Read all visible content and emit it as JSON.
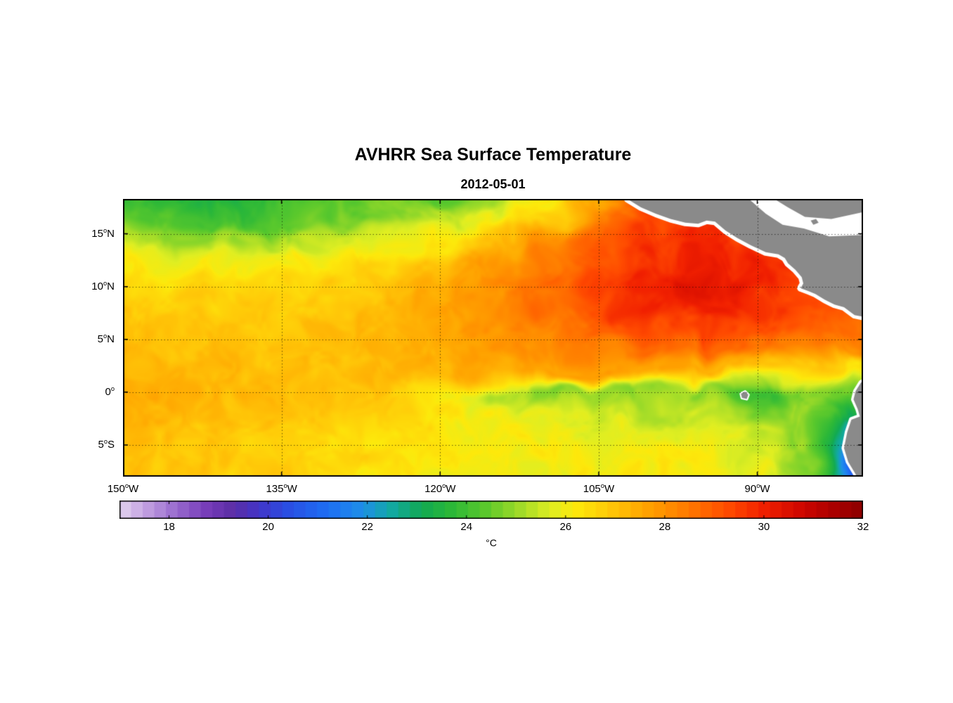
{
  "chart_data": {
    "type": "heatmap",
    "title": "AVHRR Sea Surface Temperature",
    "subtitle": "2012-05-01",
    "colorbar_label": "°C",
    "value_range": [
      17,
      32
    ],
    "colorbar_ticks": [
      18,
      20,
      22,
      24,
      26,
      28,
      30,
      32
    ],
    "lon_range": [
      -150,
      -80
    ],
    "lat_range": [
      -8,
      18.3
    ],
    "x_ticks": [
      {
        "value": -150,
        "text": "150",
        "suffix": "W"
      },
      {
        "value": -135,
        "text": "135",
        "suffix": "W"
      },
      {
        "value": -120,
        "text": "120",
        "suffix": "W"
      },
      {
        "value": -105,
        "text": "105",
        "suffix": "W"
      },
      {
        "value": -90,
        "text": "90",
        "suffix": "W"
      }
    ],
    "y_ticks": [
      {
        "value": 15,
        "text": "15",
        "suffix": "N"
      },
      {
        "value": 10,
        "text": "10",
        "suffix": "N"
      },
      {
        "value": 5,
        "text": "5",
        "suffix": "N"
      },
      {
        "value": 0,
        "text": "0",
        "suffix": ""
      },
      {
        "value": -5,
        "text": "5",
        "suffix": "S"
      }
    ],
    "grid_lines": {
      "lats": [
        15,
        10,
        5,
        0,
        -5
      ],
      "lons": [
        -135,
        -120,
        -105,
        -90
      ]
    },
    "land_color": "#8a8a8a",
    "missing_data_color": "#ffffff",
    "colormap": [
      [
        17.0,
        "#e2d4f0"
      ],
      [
        17.5,
        "#c5a3e2"
      ],
      [
        18.1,
        "#9b6fd0"
      ],
      [
        18.7,
        "#7a3fbc"
      ],
      [
        19.3,
        "#5c2ea6"
      ],
      [
        19.8,
        "#4335c8"
      ],
      [
        20.4,
        "#2a4fe4"
      ],
      [
        21.2,
        "#1e6ef5"
      ],
      [
        21.9,
        "#1f8fe8"
      ],
      [
        22.5,
        "#12a9a2"
      ],
      [
        23.1,
        "#12aa52"
      ],
      [
        23.7,
        "#2cb838"
      ],
      [
        24.4,
        "#5cc92c"
      ],
      [
        25.1,
        "#a3dc28"
      ],
      [
        25.7,
        "#dfee22"
      ],
      [
        26.2,
        "#fde90b"
      ],
      [
        26.9,
        "#ffc808"
      ],
      [
        27.7,
        "#ffa000"
      ],
      [
        28.5,
        "#ff7800"
      ],
      [
        29.3,
        "#ff4a00"
      ],
      [
        30.0,
        "#f12000"
      ],
      [
        30.8,
        "#cd0600"
      ],
      [
        31.4,
        "#ab0000"
      ],
      [
        32.0,
        "#8c0000"
      ]
    ],
    "grid": {
      "lon_start": -150,
      "lon_end": -80,
      "lat_start": 18.3,
      "lat_end": -8,
      "sst": [
        [
          24.0,
          23.6,
          23.5,
          24.0,
          24.3,
          24.6,
          24.4,
          25.2,
          26.2,
          27.6,
          29.0,
          29.3,
          29.3,
          29.2,
          29.0
        ],
        [
          24.6,
          24.2,
          24.0,
          24.2,
          24.5,
          24.9,
          25.1,
          25.8,
          26.8,
          28.2,
          29.4,
          29.6,
          29.4,
          29.2,
          29.0
        ],
        [
          25.4,
          25.0,
          25.0,
          25.2,
          25.6,
          25.9,
          26.3,
          27.0,
          27.9,
          28.9,
          29.6,
          29.9,
          29.6,
          29.4,
          29.2
        ],
        [
          26.3,
          26.0,
          26.0,
          26.1,
          26.4,
          26.7,
          27.1,
          27.7,
          28.4,
          29.2,
          29.8,
          30.1,
          29.9,
          29.5,
          29.3
        ],
        [
          26.7,
          26.5,
          26.5,
          26.6,
          26.8,
          27.0,
          27.4,
          28.0,
          28.7,
          29.5,
          30.1,
          30.3,
          30.0,
          29.2,
          28.8
        ],
        [
          26.9,
          26.8,
          26.7,
          26.8,
          26.9,
          27.2,
          27.6,
          28.1,
          28.7,
          29.3,
          29.9,
          30.0,
          29.7,
          29.3,
          28.9
        ],
        [
          27.1,
          27.0,
          26.9,
          26.9,
          27.1,
          27.3,
          27.6,
          28.0,
          28.4,
          28.8,
          29.3,
          29.5,
          29.3,
          29.1,
          28.7
        ],
        [
          27.2,
          27.1,
          27.0,
          27.0,
          27.1,
          27.3,
          27.5,
          27.8,
          28.1,
          28.3,
          28.6,
          28.8,
          28.7,
          28.5,
          28.1
        ],
        [
          27.3,
          27.2,
          27.1,
          27.0,
          27.1,
          27.2,
          27.3,
          27.5,
          27.6,
          27.7,
          27.6,
          27.4,
          27.1,
          26.9,
          26.3
        ],
        [
          27.4,
          27.3,
          27.2,
          27.1,
          27.0,
          26.8,
          26.3,
          25.3,
          24.9,
          25.1,
          24.9,
          24.8,
          23.8,
          24.9,
          24.5
        ],
        [
          27.3,
          27.2,
          27.1,
          26.9,
          26.8,
          26.6,
          26.3,
          26.0,
          25.8,
          25.6,
          25.2,
          25.4,
          24.6,
          25.0,
          23.0
        ],
        [
          27.1,
          27.0,
          26.9,
          26.8,
          26.6,
          26.4,
          26.2,
          26.1,
          26.0,
          25.9,
          25.8,
          25.7,
          25.5,
          24.8,
          21.5
        ],
        [
          27.0,
          26.9,
          26.9,
          26.8,
          26.6,
          26.5,
          26.3,
          26.2,
          26.1,
          26.1,
          26.1,
          26.0,
          25.7,
          24.9,
          20.0
        ],
        [
          27.0,
          26.9,
          26.8,
          26.7,
          26.4,
          26.2,
          26.1,
          26.0,
          26.0,
          26.1,
          26.2,
          26.1,
          25.8,
          24.6,
          20.5
        ]
      ]
    },
    "land": {
      "central_america": [
        [
          -102.3,
          18.3
        ],
        [
          -101.0,
          17.5
        ],
        [
          -99.6,
          16.9
        ],
        [
          -98.2,
          16.4
        ],
        [
          -96.8,
          16.05
        ],
        [
          -95.6,
          15.95
        ],
        [
          -94.8,
          16.25
        ],
        [
          -94.0,
          16.15
        ],
        [
          -93.0,
          15.3
        ],
        [
          -91.9,
          14.6
        ],
        [
          -90.6,
          13.9
        ],
        [
          -89.2,
          13.25
        ],
        [
          -88.0,
          13.05
        ],
        [
          -87.4,
          12.7
        ],
        [
          -87.1,
          12.2
        ],
        [
          -86.4,
          11.6
        ],
        [
          -85.8,
          10.9
        ],
        [
          -85.65,
          10.3
        ],
        [
          -85.9,
          9.85
        ],
        [
          -85.1,
          9.55
        ],
        [
          -84.5,
          9.3
        ],
        [
          -83.6,
          8.75
        ],
        [
          -82.7,
          8.3
        ],
        [
          -81.8,
          8.05
        ],
        [
          -80.8,
          7.3
        ],
        [
          -79.8,
          7.1
        ],
        [
          -78.0,
          7.8
        ],
        [
          -78.0,
          18.3
        ]
      ],
      "caribbean_mask": [
        [
          -90.8,
          18.3
        ],
        [
          -89.2,
          16.9
        ],
        [
          -87.6,
          15.85
        ],
        [
          -85.6,
          15.5
        ],
        [
          -83.2,
          14.75
        ],
        [
          -79.8,
          14.9
        ],
        [
          -79.8,
          17.1
        ],
        [
          -83.0,
          16.4
        ],
        [
          -85.5,
          16.6
        ],
        [
          -87.1,
          17.5
        ],
        [
          -88.4,
          18.3
        ]
      ],
      "island": [
        [
          -84.95,
          16.25
        ],
        [
          -84.45,
          16.4
        ],
        [
          -84.2,
          16.05
        ],
        [
          -84.7,
          15.85
        ]
      ],
      "south_america": [
        [
          -78.5,
          1.9
        ],
        [
          -80.2,
          0.9
        ],
        [
          -80.7,
          0.1
        ],
        [
          -80.9,
          -0.7
        ],
        [
          -80.5,
          -1.6
        ],
        [
          -80.3,
          -2.3
        ],
        [
          -81.1,
          -2.6
        ],
        [
          -81.5,
          -3.8
        ],
        [
          -81.8,
          -5.3
        ],
        [
          -81.4,
          -6.6
        ],
        [
          -80.8,
          -7.6
        ],
        [
          -80.4,
          -8.3
        ],
        [
          -76.0,
          -8.3
        ],
        [
          -76.0,
          1.9
        ]
      ],
      "galapagos": [
        [
          -91.55,
          -0.15
        ],
        [
          -91.15,
          0.05
        ],
        [
          -90.85,
          -0.25
        ],
        [
          -91.0,
          -0.65
        ],
        [
          -91.45,
          -0.55
        ]
      ]
    }
  }
}
